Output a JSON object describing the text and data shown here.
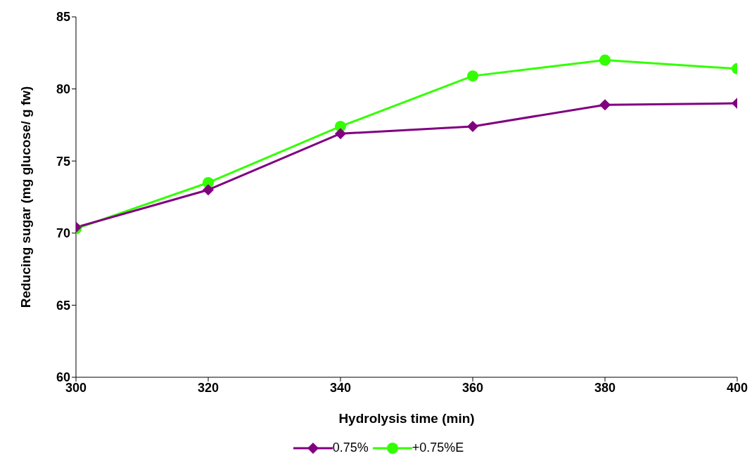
{
  "chart_data": {
    "type": "line",
    "xlabel": "Hydrolysis time (min)",
    "ylabel": "Reducing sugar (mg glucose/ g fw)",
    "x": [
      300,
      320,
      340,
      360,
      380,
      400
    ],
    "series": [
      {
        "name": "0.75%",
        "color": "#800080",
        "marker": "diamond",
        "values": [
          70.4,
          73.0,
          76.9,
          77.4,
          78.9,
          79.0
        ]
      },
      {
        "name": "+0.75%E",
        "color": "#33ff00",
        "marker": "circle",
        "values": [
          70.3,
          73.5,
          77.4,
          80.9,
          82.0,
          81.4
        ]
      }
    ],
    "xlim": [
      300,
      400
    ],
    "xticks": [
      300,
      320,
      340,
      360,
      380,
      400
    ],
    "ylim": [
      60,
      85
    ],
    "yticks": [
      60,
      65,
      70,
      75,
      80,
      85
    ],
    "grid": false,
    "legend": "bottom",
    "line_style": "solid"
  }
}
